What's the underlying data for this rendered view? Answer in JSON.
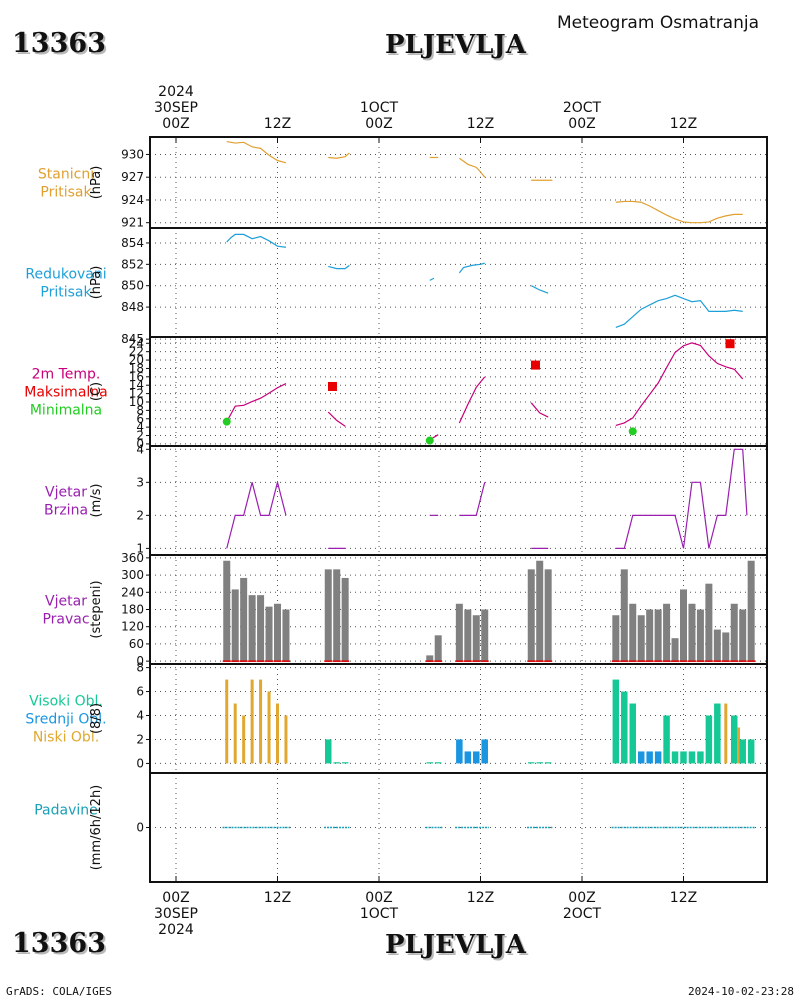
{
  "header": {
    "station_id": "13363",
    "station_name": "PLJEVLJA",
    "product_title": "Meteogram Osmatranja"
  },
  "footer": {
    "credit": "GrADS: COLA/IGES",
    "timestamp": "2024-10-02-23:28"
  },
  "time_axis": {
    "top_labels": [
      {
        "hour": 0,
        "lines": [
          "2024",
          "30SEP",
          "00Z"
        ]
      },
      {
        "hour": 12,
        "lines": [
          "12Z"
        ]
      },
      {
        "hour": 24,
        "lines": [
          "1OCT",
          "00Z"
        ]
      },
      {
        "hour": 36,
        "lines": [
          "12Z"
        ]
      },
      {
        "hour": 48,
        "lines": [
          "2OCT",
          "00Z"
        ]
      },
      {
        "hour": 60,
        "lines": [
          "12Z"
        ]
      }
    ],
    "bottom_labels": [
      {
        "hour": 0,
        "lines": [
          "00Z",
          "30SEP",
          "2024"
        ]
      },
      {
        "hour": 12,
        "lines": [
          "12Z"
        ]
      },
      {
        "hour": 24,
        "lines": [
          "00Z",
          "1OCT"
        ]
      },
      {
        "hour": 36,
        "lines": [
          "12Z"
        ]
      },
      {
        "hour": 48,
        "lines": [
          "00Z",
          "2OCT"
        ]
      },
      {
        "hour": 60,
        "lines": [
          "12Z"
        ]
      }
    ]
  },
  "colors": {
    "station_pressure": "#e0a030",
    "reduced_pressure": "#1e9fd8",
    "temperature": "#c8007a",
    "maximum": "#e80000",
    "minimum": "#22cc22",
    "wind": "#9a1fb0",
    "wind_bars": "#808080",
    "cloud_high": "#16c896",
    "cloud_mid": "#1a96e0",
    "cloud_low": "#e0a830",
    "precip": "#1a9fb8"
  },
  "chart_data": [
    {
      "type": "line",
      "panel": "station_pressure",
      "title_lines": [
        "Stanicni",
        "Pritisak"
      ],
      "ylabel": "(hPa)",
      "yticks": [
        "921",
        "924",
        "927",
        "930"
      ],
      "ylim": [
        920.3,
        932.3
      ],
      "segments": [
        [
          [
            6,
            931.7
          ],
          [
            7,
            931.5
          ],
          [
            8,
            931.6
          ],
          [
            9,
            931.0
          ],
          [
            10,
            930.8
          ],
          [
            11,
            929.9
          ],
          [
            12,
            929.2
          ],
          [
            13,
            928.9
          ]
        ],
        [
          [
            18,
            929.6
          ],
          [
            19,
            929.5
          ],
          [
            20,
            929.7
          ],
          [
            20.5,
            930.2
          ]
        ],
        [
          [
            30,
            929.6
          ],
          [
            31,
            929.6
          ]
        ],
        [
          [
            33.5,
            929.5
          ],
          [
            34.5,
            928.7
          ],
          [
            35.5,
            928.3
          ],
          [
            36,
            927.7
          ],
          [
            36.5,
            927.0
          ]
        ],
        [
          [
            42,
            926.6
          ],
          [
            44.5,
            926.6
          ]
        ],
        [
          [
            52,
            923.7
          ],
          [
            53,
            923.8
          ],
          [
            54,
            923.8
          ],
          [
            55,
            923.7
          ],
          [
            56,
            923.2
          ],
          [
            57,
            922.6
          ],
          [
            58,
            922.0
          ],
          [
            59,
            921.5
          ],
          [
            60,
            921.1
          ],
          [
            61,
            921.0
          ],
          [
            62,
            921.0
          ],
          [
            63,
            921.1
          ],
          [
            64,
            921.6
          ],
          [
            65,
            921.9
          ],
          [
            66,
            922.1
          ],
          [
            67,
            922.1
          ]
        ]
      ]
    },
    {
      "type": "line",
      "panel": "reduced_pressure",
      "title_lines": [
        "Redukovani",
        "Pritisak"
      ],
      "ylabel": "(hPa)",
      "yticks": [
        "845",
        "848",
        "850",
        "852",
        "854"
      ],
      "ylim": [
        845.2,
        855.4
      ],
      "segments": [
        [
          [
            6,
            854.1
          ],
          [
            6.5,
            854.5
          ],
          [
            7,
            854.8
          ],
          [
            8,
            854.8
          ],
          [
            9,
            854.4
          ],
          [
            10,
            854.6
          ],
          [
            11,
            854.2
          ],
          [
            12,
            853.7
          ],
          [
            13,
            853.6
          ]
        ],
        [
          [
            18,
            851.8
          ],
          [
            19,
            851.6
          ],
          [
            20,
            851.6
          ],
          [
            20.5,
            851.9
          ]
        ],
        [
          [
            30,
            850.5
          ],
          [
            30.5,
            850.7
          ]
        ],
        [
          [
            33.5,
            851.2
          ],
          [
            34,
            851.7
          ],
          [
            35,
            851.9
          ],
          [
            36,
            852.0
          ],
          [
            36.5,
            852.1
          ]
        ],
        [
          [
            42,
            850.0
          ],
          [
            43,
            849.6
          ],
          [
            44,
            849.3
          ]
        ],
        [
          [
            52,
            846.1
          ],
          [
            53,
            846.4
          ],
          [
            54,
            847.1
          ],
          [
            55,
            847.8
          ],
          [
            56,
            848.2
          ],
          [
            57,
            848.6
          ],
          [
            58,
            848.8
          ],
          [
            59,
            849.1
          ],
          [
            60,
            848.8
          ],
          [
            61,
            848.5
          ],
          [
            62,
            848.6
          ],
          [
            63,
            847.6
          ],
          [
            64,
            847.6
          ],
          [
            65,
            847.6
          ],
          [
            66,
            847.7
          ],
          [
            67,
            847.6
          ]
        ]
      ]
    },
    {
      "type": "line",
      "panel": "temperature",
      "title_lines": [
        "2m Temp.",
        "Maksimalna",
        "Minimalna"
      ],
      "ylabel": "(C)",
      "yticks": [
        "0",
        "2",
        "4",
        "6",
        "8",
        "10",
        "12",
        "14",
        "16",
        "18",
        "20",
        "22",
        "24"
      ],
      "ylim": [
        -0.5,
        25.5
      ],
      "segments": [
        [
          [
            6,
            5.3
          ],
          [
            7,
            9.0
          ],
          [
            8,
            9.2
          ],
          [
            9,
            10.1
          ],
          [
            10,
            10.9
          ],
          [
            11,
            12.1
          ],
          [
            12,
            13.4
          ],
          [
            13,
            14.4
          ]
        ],
        [
          [
            18,
            7.6
          ],
          [
            19,
            5.6
          ],
          [
            20,
            4.2
          ]
        ],
        [
          [
            30,
            1.0
          ],
          [
            31,
            2.2
          ]
        ],
        [
          [
            33.5,
            5.0
          ],
          [
            34.5,
            9.4
          ],
          [
            35.5,
            13.5
          ],
          [
            36.5,
            16.0
          ]
        ],
        [
          [
            42,
            9.8
          ],
          [
            43,
            7.4
          ],
          [
            44,
            6.4
          ]
        ],
        [
          [
            52,
            4.4
          ],
          [
            53,
            5.0
          ],
          [
            54,
            6.2
          ],
          [
            55,
            9.1
          ],
          [
            56,
            11.8
          ],
          [
            57,
            14.5
          ],
          [
            58,
            18.2
          ],
          [
            59,
            21.8
          ],
          [
            60,
            23.4
          ],
          [
            61,
            24.1
          ],
          [
            62,
            23.5
          ],
          [
            63,
            21.0
          ],
          [
            64,
            19.2
          ],
          [
            65,
            18.4
          ],
          [
            66,
            17.8
          ],
          [
            67,
            15.5
          ]
        ]
      ],
      "maximum": [
        [
          18.5,
          13.7
        ],
        [
          42.5,
          18.8
        ],
        [
          65.5,
          23.9
        ]
      ],
      "minimum": [
        [
          6,
          5.3
        ],
        [
          30,
          0.8
        ],
        [
          54,
          3.0
        ]
      ]
    },
    {
      "type": "line",
      "panel": "wind_speed",
      "title_lines": [
        "Vjetar",
        "Brzina"
      ],
      "ylabel": "(m/s)",
      "yticks": [
        "1",
        "2",
        "3",
        "4"
      ],
      "ylim": [
        0.8,
        4.1
      ],
      "segments": [
        [
          [
            6,
            1
          ],
          [
            7,
            2
          ],
          [
            8,
            2
          ],
          [
            9,
            3
          ],
          [
            10,
            2
          ],
          [
            11,
            2
          ],
          [
            12,
            3
          ],
          [
            13,
            2
          ]
        ],
        [
          [
            18,
            1
          ],
          [
            20,
            1
          ]
        ],
        [
          [
            30,
            2
          ],
          [
            31,
            2
          ]
        ],
        [
          [
            33.5,
            2
          ],
          [
            35.5,
            2
          ],
          [
            36.5,
            3
          ]
        ],
        [
          [
            42,
            1
          ],
          [
            44,
            1
          ]
        ],
        [
          [
            52,
            1
          ],
          [
            53,
            1
          ],
          [
            54,
            2
          ],
          [
            55,
            2
          ],
          [
            56,
            2
          ],
          [
            57,
            2
          ],
          [
            58,
            2
          ],
          [
            59,
            2
          ],
          [
            60,
            1
          ],
          [
            61,
            3
          ],
          [
            62,
            3
          ],
          [
            63,
            1
          ],
          [
            64,
            2
          ],
          [
            65,
            2
          ],
          [
            66,
            4
          ],
          [
            67,
            4
          ],
          [
            67.5,
            2
          ]
        ]
      ]
    },
    {
      "type": "bar",
      "panel": "wind_direction",
      "title_lines": [
        "Vjetar",
        "Pravac"
      ],
      "ylabel": "(stepeni)",
      "yticks": [
        "0",
        "60",
        "120",
        "180",
        "240",
        "300",
        "360"
      ],
      "ylim": [
        -10,
        370
      ],
      "bars": [
        [
          6,
          350
        ],
        [
          7,
          250
        ],
        [
          8,
          290
        ],
        [
          9,
          230
        ],
        [
          10,
          230
        ],
        [
          11,
          190
        ],
        [
          12,
          200
        ],
        [
          13,
          180
        ],
        [
          18,
          320
        ],
        [
          19,
          320
        ],
        [
          20,
          290
        ],
        [
          30,
          20
        ],
        [
          31,
          90
        ],
        [
          33.5,
          200
        ],
        [
          34.5,
          180
        ],
        [
          35.5,
          160
        ],
        [
          36.5,
          180
        ],
        [
          42,
          320
        ],
        [
          43,
          350
        ],
        [
          44,
          320
        ],
        [
          52,
          160
        ],
        [
          53,
          320
        ],
        [
          54,
          200
        ],
        [
          55,
          160
        ],
        [
          56,
          180
        ],
        [
          57,
          180
        ],
        [
          58,
          200
        ],
        [
          59,
          80
        ],
        [
          60,
          250
        ],
        [
          61,
          200
        ],
        [
          62,
          180
        ],
        [
          63,
          270
        ],
        [
          64,
          110
        ],
        [
          65,
          100
        ],
        [
          66,
          200
        ],
        [
          67,
          180
        ],
        [
          68,
          350
        ]
      ]
    },
    {
      "type": "bar",
      "panel": "clouds",
      "title_lines": [
        "Visoki Obl.",
        "Srednji Obl.",
        "Niski Obl."
      ],
      "ylabel": "(8/8)",
      "yticks": [
        "0",
        "2",
        "4",
        "6",
        "8"
      ],
      "ylim": [
        -0.8,
        8.3
      ],
      "bars": [
        {
          "hour": 6,
          "value": 7,
          "layer": "low"
        },
        {
          "hour": 7,
          "value": 5,
          "layer": "low"
        },
        {
          "hour": 8,
          "value": 4,
          "layer": "low"
        },
        {
          "hour": 9,
          "value": 7,
          "layer": "low"
        },
        {
          "hour": 10,
          "value": 7,
          "layer": "low"
        },
        {
          "hour": 11,
          "value": 6,
          "layer": "low"
        },
        {
          "hour": 12,
          "value": 5,
          "layer": "low"
        },
        {
          "hour": 13,
          "value": 4,
          "layer": "low"
        },
        {
          "hour": 18,
          "value": 2,
          "layer": "high"
        },
        {
          "hour": 19,
          "value": 0.1,
          "layer": "high"
        },
        {
          "hour": 20,
          "value": 0.1,
          "layer": "high"
        },
        {
          "hour": 30,
          "value": 0.1,
          "layer": "high"
        },
        {
          "hour": 31,
          "value": 0.1,
          "layer": "high"
        },
        {
          "hour": 33.5,
          "value": 2,
          "layer": "mid"
        },
        {
          "hour": 34.5,
          "value": 1,
          "layer": "mid"
        },
        {
          "hour": 35.5,
          "value": 1,
          "layer": "mid"
        },
        {
          "hour": 36.5,
          "value": 2,
          "layer": "mid"
        },
        {
          "hour": 42,
          "value": 0.1,
          "layer": "high"
        },
        {
          "hour": 43,
          "value": 0.1,
          "layer": "high"
        },
        {
          "hour": 44,
          "value": 0.1,
          "layer": "high"
        },
        {
          "hour": 52,
          "value": 7,
          "layer": "high"
        },
        {
          "hour": 53,
          "value": 6,
          "layer": "high"
        },
        {
          "hour": 54,
          "value": 5,
          "layer": "high"
        },
        {
          "hour": 55,
          "value": 1,
          "layer": "mid"
        },
        {
          "hour": 56,
          "value": 1,
          "layer": "mid"
        },
        {
          "hour": 57,
          "value": 1,
          "layer": "mid"
        },
        {
          "hour": 58,
          "value": 4,
          "layer": "high"
        },
        {
          "hour": 59,
          "value": 1,
          "layer": "high"
        },
        {
          "hour": 60,
          "value": 1,
          "layer": "high"
        },
        {
          "hour": 61,
          "value": 1,
          "layer": "high"
        },
        {
          "hour": 62,
          "value": 1,
          "layer": "high"
        },
        {
          "hour": 63,
          "value": 4,
          "layer": "high"
        },
        {
          "hour": 64,
          "value": 5,
          "layer": "high"
        },
        {
          "hour": 65,
          "value": 5,
          "layer": "low"
        },
        {
          "hour": 66,
          "value": 4,
          "layer": "high"
        },
        {
          "hour": 66.5,
          "value": 3,
          "layer": "low"
        },
        {
          "hour": 67,
          "value": 2,
          "layer": "high"
        },
        {
          "hour": 68,
          "value": 2,
          "layer": "high"
        }
      ]
    },
    {
      "type": "bar",
      "panel": "precipitation",
      "title_lines": [
        "Padavine"
      ],
      "ylabel": "(mm/6h/12h)",
      "yticks": [
        "0"
      ],
      "ylim": [
        -1,
        1
      ],
      "zero_segments": [
        [
          5.5,
          13.5
        ],
        [
          17.5,
          20.5
        ],
        [
          29.5,
          31.5
        ],
        [
          33,
          37
        ],
        [
          41.5,
          44.5
        ],
        [
          51.5,
          68.5
        ]
      ]
    }
  ]
}
